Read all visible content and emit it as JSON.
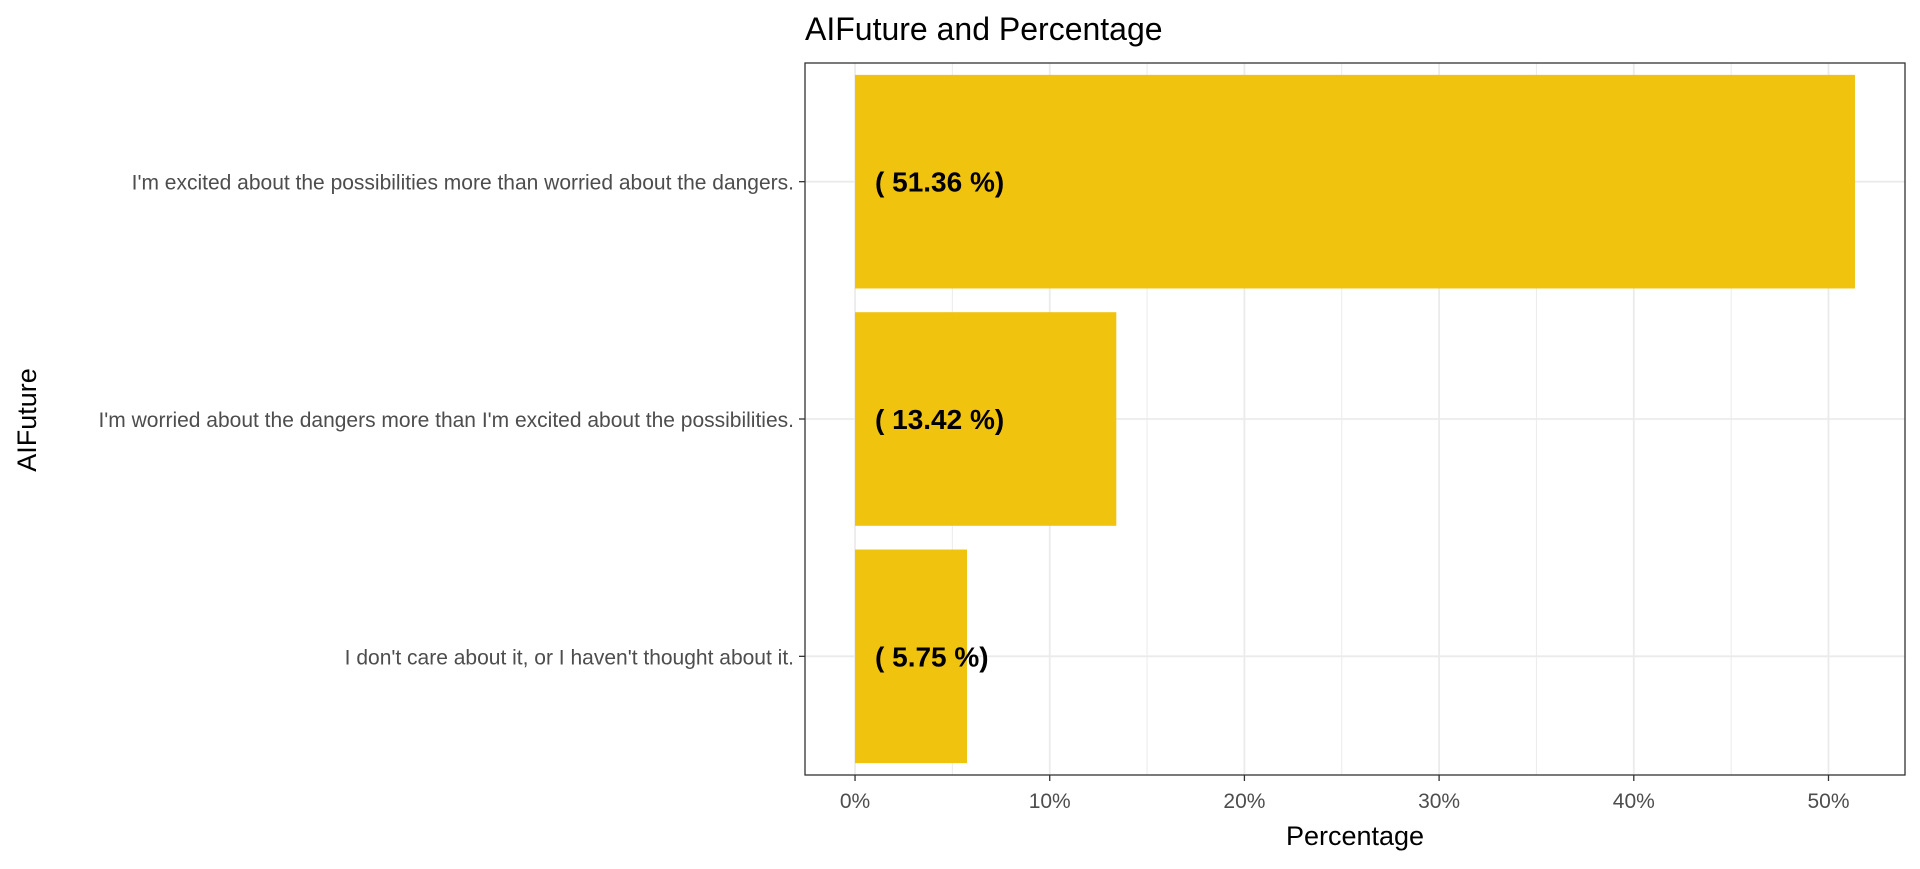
{
  "chart_data": {
    "type": "bar",
    "orientation": "horizontal",
    "title": "AIFuture and Percentage",
    "xlabel": "Percentage",
    "ylabel": "AIFuture",
    "categories": [
      "I'm excited about the possibilities more than worried about the dangers.",
      "I'm worried about the dangers more than I'm excited about the possibilities.",
      "I don't care about it, or I haven't thought about it."
    ],
    "values": [
      51.36,
      13.42,
      5.75
    ],
    "data_labels": [
      "( 51.36 %)",
      "( 13.42 %)",
      "( 5.75 %)"
    ],
    "xlim": [
      -2.57,
      53.93
    ],
    "x_ticks": [
      0,
      10,
      20,
      30,
      40,
      50
    ],
    "x_tick_labels": [
      "0%",
      "10%",
      "20%",
      "30%",
      "40%",
      "50%"
    ],
    "grid": true,
    "bar_color": "#F0C30F",
    "panel_border_color": "#333333",
    "grid_color": "#EBEBEB"
  }
}
